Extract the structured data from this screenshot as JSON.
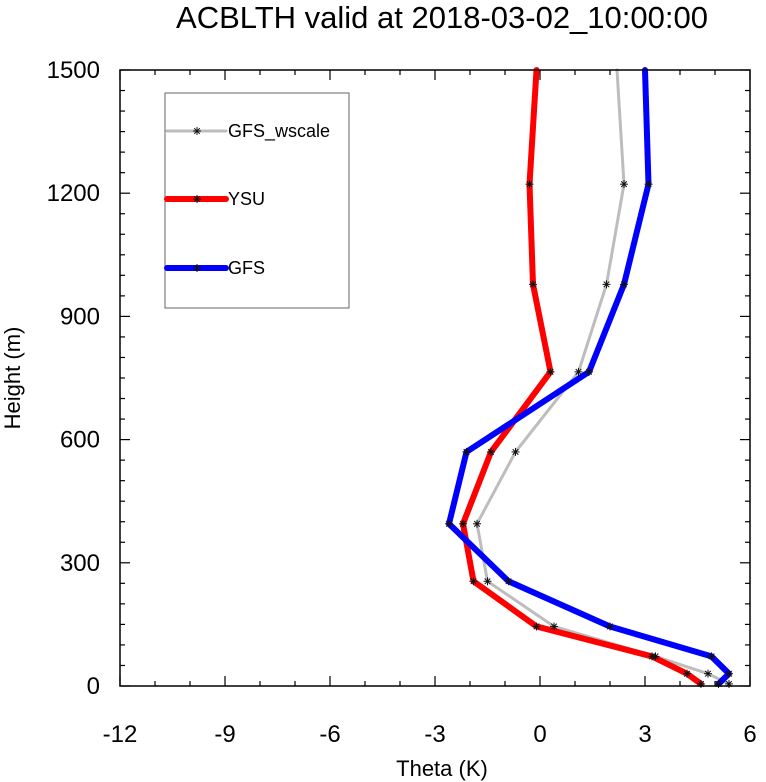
{
  "chart_data": {
    "type": "line",
    "title": "ACBLTH valid at 2018-03-02_10:00:00",
    "xlabel": "Theta (K)",
    "ylabel": "Height (m)",
    "xlim": [
      -12,
      6
    ],
    "ylim": [
      0,
      1500
    ],
    "xticks": [
      "-12",
      "-9",
      "-6",
      "-3",
      "0",
      "3",
      "6"
    ],
    "yticks": [
      "0",
      "300",
      "600",
      "900",
      "1200",
      "1500"
    ],
    "legend_position": "top-left",
    "series": [
      {
        "name": "GFS_wscale",
        "color": "#bdbdbd",
        "marker": "asterisk",
        "x": [
          5.4,
          4.8,
          3.3,
          0.4,
          -1.5,
          -1.8,
          -0.7,
          1.1,
          1.9,
          2.4,
          2.2
        ],
        "y": [
          5,
          30,
          72,
          145,
          255,
          395,
          570,
          765,
          978,
          1222,
          1500
        ]
      },
      {
        "name": "YSU",
        "color": "#ff0000",
        "marker": "asterisk",
        "x": [
          4.6,
          4.2,
          3.2,
          -0.1,
          -1.9,
          -2.2,
          -1.4,
          0.3,
          -0.2,
          -0.3,
          -0.1
        ],
        "y": [
          5,
          30,
          72,
          145,
          255,
          395,
          570,
          765,
          978,
          1222,
          1500
        ]
      },
      {
        "name": "GFS",
        "color": "#0000ff",
        "marker": "asterisk",
        "x": [
          5.1,
          5.4,
          4.9,
          2.0,
          -0.9,
          -2.6,
          -2.1,
          1.4,
          2.4,
          3.1,
          3.0
        ],
        "y": [
          5,
          30,
          72,
          145,
          255,
          395,
          570,
          765,
          978,
          1222,
          1500
        ]
      }
    ]
  }
}
